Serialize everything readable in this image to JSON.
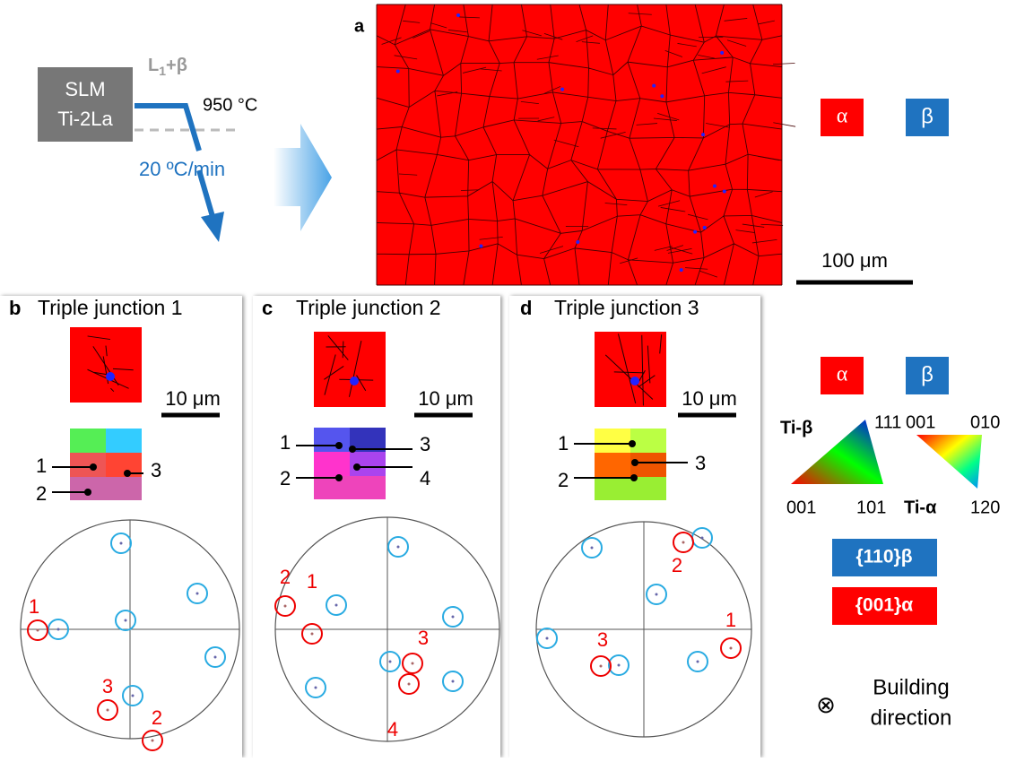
{
  "schematic": {
    "material": [
      "SLM",
      "Ti-2La"
    ],
    "phase": {
      "main": "L",
      "sub": "1",
      "rest": "+β"
    },
    "temperature": "950 °C",
    "cooling_rate": "20 ºC/min"
  },
  "panel_a": {
    "label": "a",
    "scale_bar": "100 μm"
  },
  "legend_top": {
    "alpha": "α",
    "beta": "β"
  },
  "panels": [
    {
      "label": "b",
      "title": "Triple junction 1",
      "scale_bar": "10 μm",
      "ipf_labels": [
        "1",
        "2",
        "3"
      ],
      "pole_labels": [
        "1",
        "3",
        "2"
      ]
    },
    {
      "label": "c",
      "title": "Triple junction 2",
      "scale_bar": "10 μm",
      "ipf_labels": [
        "1",
        "2",
        "3",
        "4"
      ],
      "pole_labels": [
        "2",
        "1",
        "3",
        "4"
      ]
    },
    {
      "label": "d",
      "title": "Triple junction 3",
      "scale_bar": "10 μm",
      "ipf_labels": [
        "1",
        "2",
        "3"
      ],
      "pole_labels": [
        "2",
        "1",
        "3"
      ]
    }
  ],
  "legend_right": {
    "alpha": "α",
    "beta": "β",
    "ti_beta": "Ti-β",
    "ti_beta_corners": [
      "111",
      "001",
      "101"
    ],
    "ti_alpha": "Ti-α",
    "ti_alpha_corners": [
      "001",
      "010",
      "120"
    ],
    "beta_plane": "{110}β",
    "alpha_plane": "{001}α",
    "symbol": "⊗",
    "direction": [
      "Building",
      "direction"
    ]
  }
}
